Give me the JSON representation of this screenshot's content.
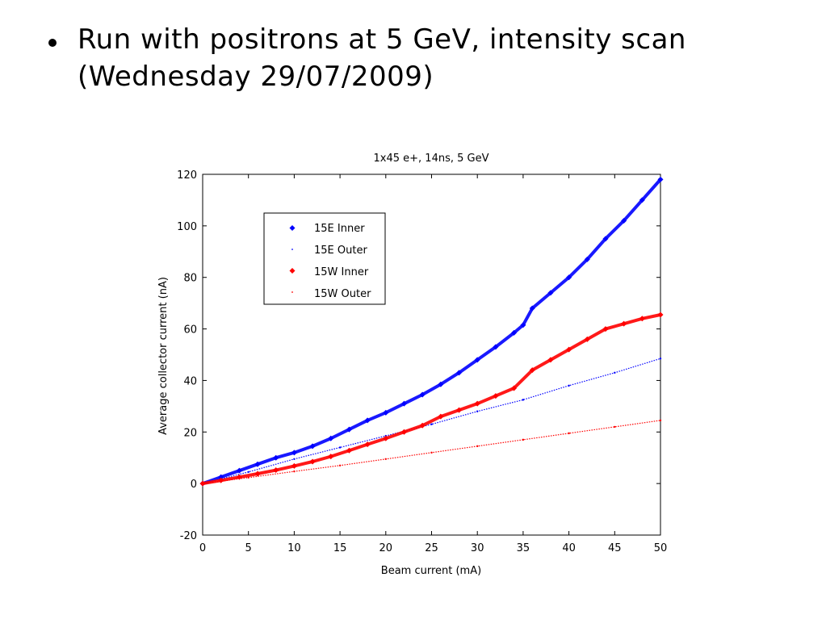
{
  "slide": {
    "bullet_line1": "Run with positrons at 5 GeV, intensity scan",
    "bullet_line2": "(Wednesday 29/07/2009)"
  },
  "chart_data": {
    "type": "scatter",
    "title": "1x45 e+, 14ns, 5 GeV",
    "xlabel": "Beam current (mA)",
    "ylabel": "Average collector current (nA)",
    "xlim": [
      0,
      50
    ],
    "ylim": [
      -20,
      120
    ],
    "xticks": [
      0,
      5,
      10,
      15,
      20,
      25,
      30,
      35,
      40,
      45,
      50
    ],
    "yticks": [
      -20,
      0,
      20,
      40,
      60,
      80,
      100,
      120
    ],
    "grid": false,
    "legend_position": "top-left",
    "series": [
      {
        "name": "15E Inner",
        "color": "#0000ff",
        "marker": "diamond",
        "x": [
          0,
          2,
          4,
          6,
          8,
          10,
          12,
          14,
          16,
          18,
          20,
          22,
          24,
          26,
          28,
          30,
          32,
          34,
          35,
          36,
          38,
          40,
          42,
          44,
          46,
          48,
          50
        ],
        "y": [
          0,
          2.5,
          5,
          7.5,
          10,
          12,
          14.5,
          17.5,
          21,
          24.5,
          27.5,
          31,
          34.5,
          38.5,
          43,
          48,
          53,
          58.5,
          61.5,
          68,
          74,
          80,
          87,
          95,
          102,
          110,
          118
        ]
      },
      {
        "name": "15E Outer",
        "color": "#0000ff",
        "marker": "dot",
        "x": [
          0,
          5,
          10,
          15,
          20,
          25,
          30,
          35,
          40,
          45,
          50
        ],
        "y": [
          0,
          4.5,
          9.5,
          14,
          18.5,
          23,
          28,
          32.5,
          38,
          43,
          48.5
        ]
      },
      {
        "name": "15W Inner",
        "color": "#ff0000",
        "marker": "diamond",
        "x": [
          0,
          2,
          4,
          6,
          8,
          10,
          12,
          14,
          16,
          18,
          20,
          22,
          24,
          26,
          28,
          30,
          32,
          34,
          36,
          38,
          40,
          42,
          44,
          46,
          48,
          50
        ],
        "y": [
          0,
          1.2,
          2.5,
          3.8,
          5.2,
          6.8,
          8.5,
          10.5,
          12.8,
          15.2,
          17.5,
          20,
          22.5,
          26,
          28.5,
          31,
          34,
          37,
          44,
          48,
          52,
          56,
          60,
          62,
          64,
          65.5
        ]
      },
      {
        "name": "15W Outer",
        "color": "#ff0000",
        "marker": "dot",
        "x": [
          0,
          5,
          10,
          15,
          20,
          25,
          30,
          35,
          40,
          45,
          50
        ],
        "y": [
          0,
          2.3,
          4.7,
          7,
          9.5,
          12,
          14.5,
          17,
          19.5,
          22,
          24.5
        ]
      }
    ]
  }
}
